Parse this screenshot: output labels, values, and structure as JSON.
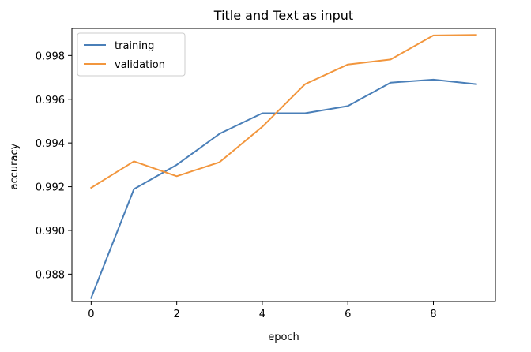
{
  "chart_data": {
    "type": "line",
    "title": "Title and Text as input",
    "xlabel": "epoch",
    "ylabel": "accuracy",
    "x": [
      0,
      1,
      2,
      3,
      4,
      5,
      6,
      7,
      8,
      9
    ],
    "xlim": [
      -0.45,
      9.45
    ],
    "ylim": [
      0.98675,
      0.99924
    ],
    "xticks": [
      0,
      2,
      4,
      6,
      8
    ],
    "xtick_labels": [
      "0",
      "2",
      "4",
      "6",
      "8"
    ],
    "yticks": [
      0.988,
      0.99,
      0.992,
      0.994,
      0.996,
      0.998
    ],
    "ytick_labels": [
      "0.988",
      "0.990",
      "0.992",
      "0.994",
      "0.996",
      "0.998"
    ],
    "grid": false,
    "legend_position": "top-left",
    "series": [
      {
        "name": "training",
        "color": "#4a7fb8",
        "values": [
          0.98691,
          0.99189,
          0.993,
          0.99442,
          0.99536,
          0.99536,
          0.99569,
          0.99676,
          0.9969,
          0.99669
        ]
      },
      {
        "name": "validation",
        "color": "#f2963d",
        "values": [
          0.99195,
          0.99316,
          0.99248,
          0.99312,
          0.99474,
          0.99669,
          0.99759,
          0.99782,
          0.99892,
          0.99894
        ]
      }
    ]
  }
}
